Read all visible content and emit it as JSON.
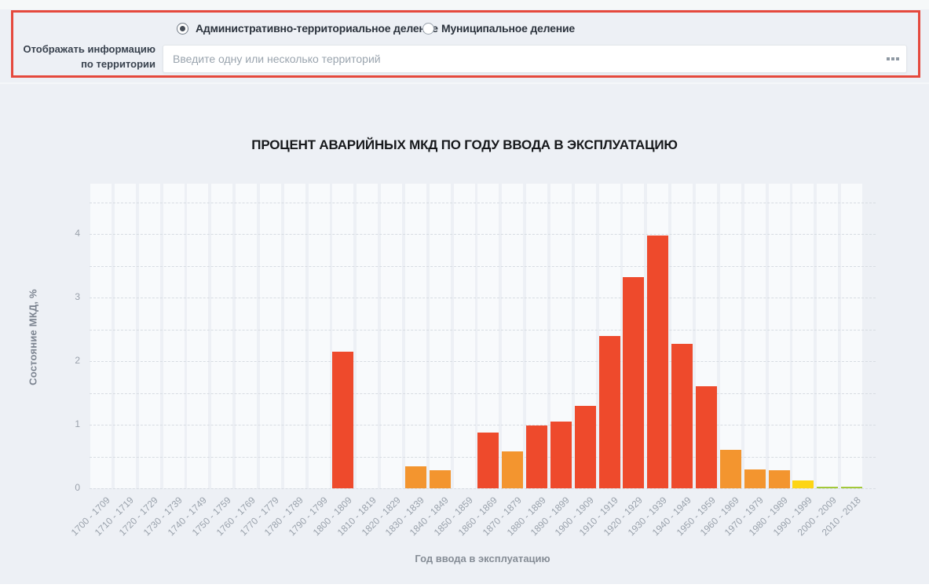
{
  "filter_panel": {
    "highlight_border_color": "#e5493d",
    "label": "Отображать информацию по территории",
    "radios": [
      {
        "label": "Административно-территориальное деление",
        "checked": true
      },
      {
        "label": "Муниципальное деление",
        "checked": false
      }
    ],
    "input": {
      "value": "",
      "placeholder": "Введите одну или несколько территорий"
    },
    "more_button": "ellipsis-icon"
  },
  "chart_data": {
    "type": "bar",
    "title": "ПРОЦЕНТ АВАРИЙНЫХ МКД ПО ГОДУ ВВОДА В ЭКСПЛУАТАЦИЮ",
    "xlabel": "Год ввода в эксплуатацию",
    "ylabel": "Состояние МКД, %",
    "ylim": [
      0,
      4.8
    ],
    "yticks": [
      0,
      1,
      2,
      3,
      4
    ],
    "grid": "horizontal dashed lines every 0.5, vertical light category bands",
    "legend": "none",
    "categories": [
      "1700 - 1709",
      "1710 - 1719",
      "1720 - 1729",
      "1730 - 1739",
      "1740 - 1749",
      "1750 - 1759",
      "1760 - 1769",
      "1770 - 1779",
      "1780 - 1789",
      "1790 - 1799",
      "1800 - 1809",
      "1810 - 1819",
      "1820 - 1829",
      "1830 - 1839",
      "1840 - 1849",
      "1850 - 1859",
      "1860 - 1869",
      "1870 - 1879",
      "1880 - 1889",
      "1890 - 1899",
      "1900 - 1909",
      "1910 - 1919",
      "1920 - 1929",
      "1930 - 1939",
      "1940 - 1949",
      "1950 - 1959",
      "1960 - 1969",
      "1970 - 1979",
      "1980 - 1989",
      "1990 - 1999",
      "2000 - 2009",
      "2010 - 2018"
    ],
    "values": [
      0,
      0,
      0,
      0,
      0,
      0,
      0,
      0,
      0,
      0,
      2.15,
      0,
      0,
      0.35,
      0.29,
      0,
      0.88,
      0.58,
      0.99,
      1.05,
      1.3,
      2.4,
      3.32,
      3.97,
      2.27,
      1.6,
      0.6,
      0.3,
      0.29,
      0.12,
      0.03,
      0.03
    ],
    "bar_colors": [
      null,
      null,
      null,
      null,
      null,
      null,
      null,
      null,
      null,
      null,
      "#ee4a2c",
      null,
      null,
      "#f3952f",
      "#f3952f",
      null,
      "#ee4a2c",
      "#f3952f",
      "#ee4a2c",
      "#ee4a2c",
      "#ee4a2c",
      "#ee4a2c",
      "#ee4a2c",
      "#ee4a2c",
      "#ee4a2c",
      "#ee4a2c",
      "#f3952f",
      "#f3952f",
      "#f3952f",
      "#fdd514",
      "#a3c93a",
      "#a3c93a"
    ],
    "palette": {
      "red": "#ee4a2c",
      "orange": "#f3952f",
      "yellow": "#fdd514",
      "green": "#a3c93a",
      "band": "#f8fafc",
      "background": "#edf0f5",
      "gridline": "#d7dce2"
    }
  }
}
